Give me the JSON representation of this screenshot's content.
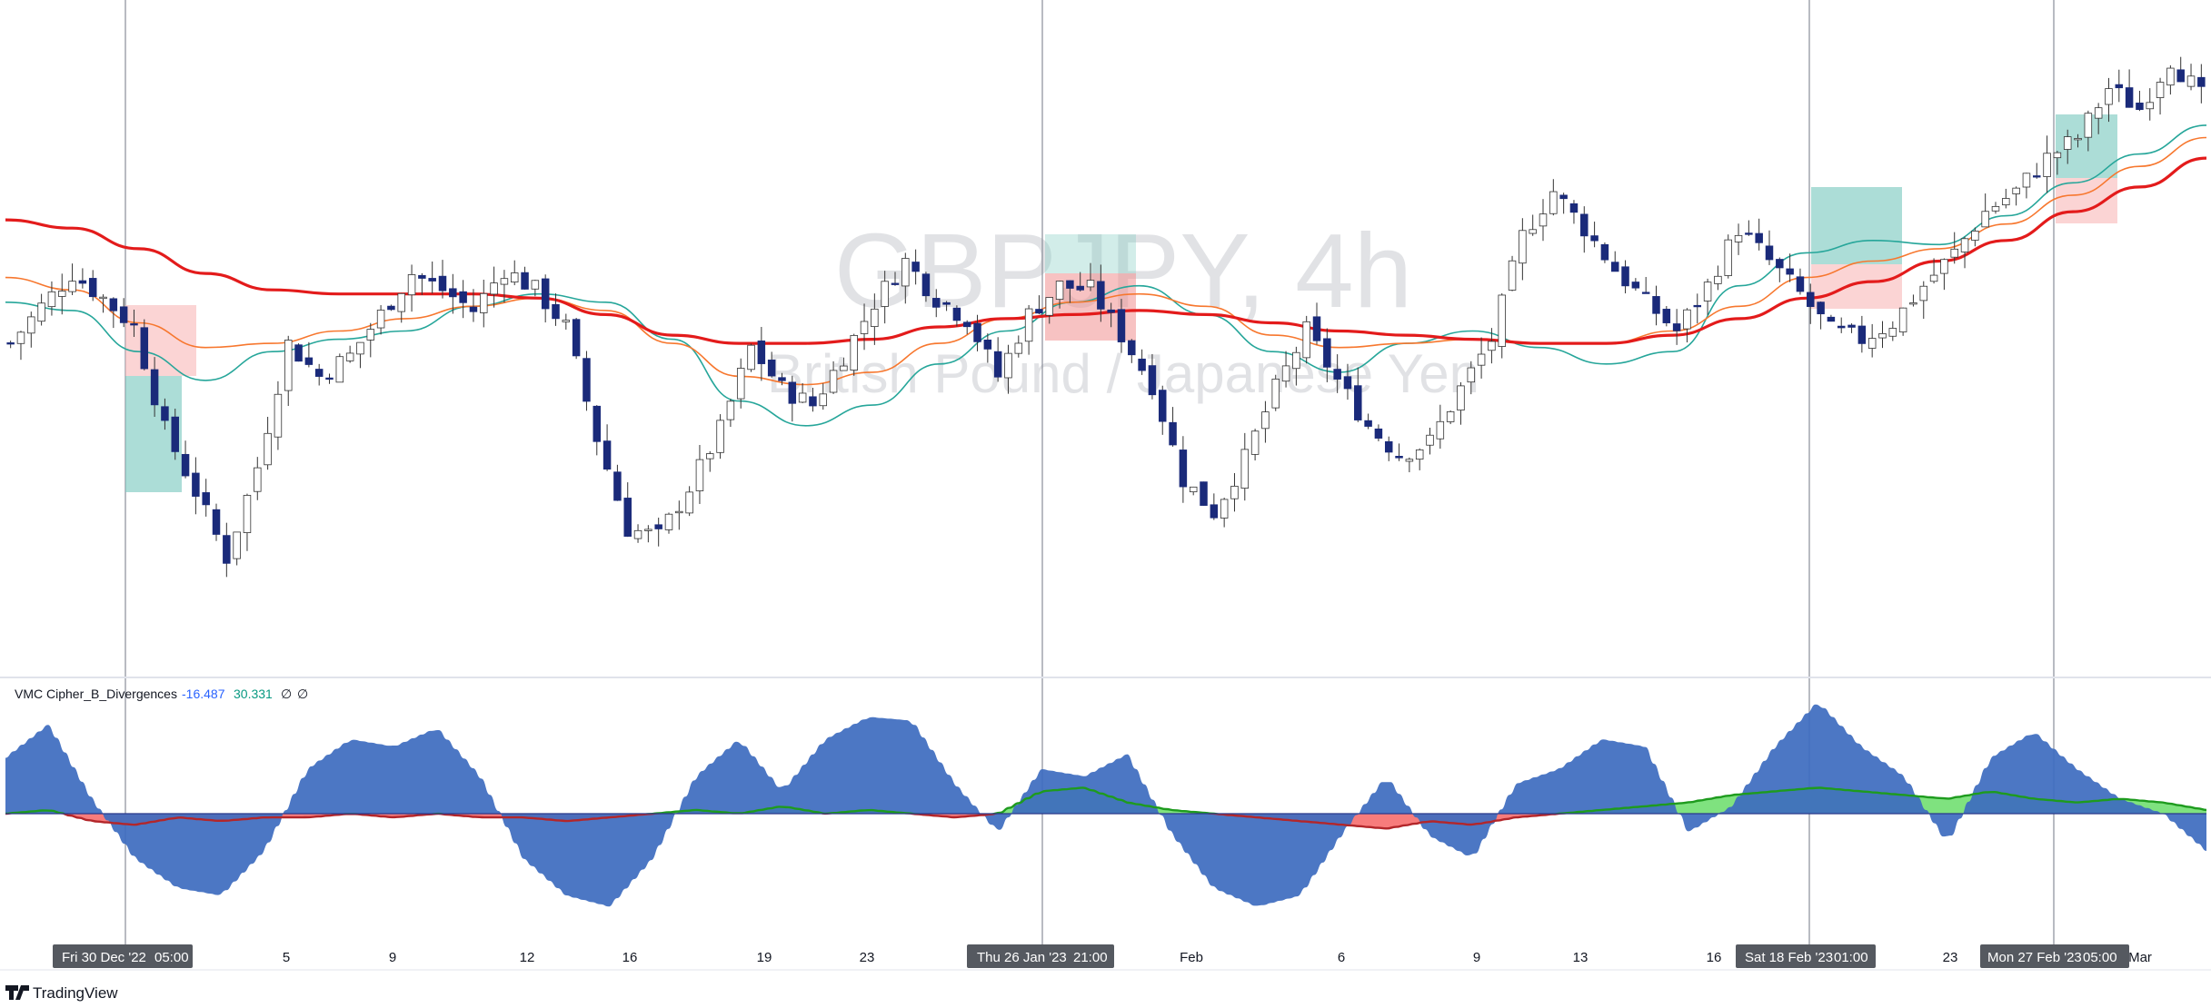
{
  "watermark": {
    "symbol": "GBPJPY, 4h",
    "description": "British Pound / Japanese Yen"
  },
  "indicator": {
    "name": "VMC Cipher_B_Divergences",
    "value1": "-16.487",
    "value2": "30.331",
    "value3": "∅",
    "value4": "∅"
  },
  "time_axis": {
    "labels": [
      {
        "text": "Fri 30 Dec '22",
        "highlight": true
      },
      {
        "text": "05:00",
        "highlight": true
      },
      {
        "text": "5"
      },
      {
        "text": "9"
      },
      {
        "text": "12"
      },
      {
        "text": "16"
      },
      {
        "text": "19"
      },
      {
        "text": "23"
      },
      {
        "text": "Thu 26 Jan '23",
        "highlight": true
      },
      {
        "text": "21:00",
        "highlight": true
      },
      {
        "text": "Feb"
      },
      {
        "text": "6"
      },
      {
        "text": "9"
      },
      {
        "text": "13"
      },
      {
        "text": "16"
      },
      {
        "text": "Sat 18 Feb '23",
        "highlight": true
      },
      {
        "text": "01:00",
        "highlight": true
      },
      {
        "text": "23"
      },
      {
        "text": "Mon 27 Feb '23",
        "highlight": true
      },
      {
        "text": "05:00",
        "highlight": true
      },
      {
        "text": "Mar"
      }
    ]
  },
  "brand": "TradingView",
  "colors": {
    "bull_body": "#ffffff",
    "bear_body": "#1a2a7a",
    "wick": "#333333",
    "ma_fast": "#26a69a",
    "ma_mid": "#f7772e",
    "ma_slow": "#e31b1b",
    "wave_blue": "#3d6bbf",
    "money_red": "#f77c7c",
    "money_green": "#7fe27f",
    "box_red": "#f8b8b8",
    "box_teal": "#7fcbc1"
  },
  "chart_data": [
    {
      "type": "candlestick",
      "symbol": "GBPJPY",
      "timeframe": "4h",
      "close_path": [
        160.6,
        161.5,
        162.3,
        161.7,
        161.0,
        158.5,
        157.0,
        155.4,
        157.6,
        160.6,
        159.8,
        160.3,
        161.3,
        162.3,
        161.9,
        161.4,
        162.4,
        161.9,
        161.0,
        158.3,
        156.1,
        155.9,
        157.1,
        158.5,
        160.5,
        159.5,
        159.1,
        160.3,
        161.6,
        162.6,
        161.7,
        161.2,
        159.8,
        161.3,
        162.0,
        161.9,
        160.8,
        159.6,
        157.3,
        156.5,
        157.8,
        159.5,
        160.9,
        159.7,
        158.6,
        157.9,
        158.2,
        159.5,
        160.7,
        163.2,
        164.3,
        163.4,
        162.4,
        161.6,
        160.9,
        162.0,
        163.4,
        162.6,
        161.8,
        160.9,
        160.7,
        161.1,
        162.0,
        162.8,
        163.8,
        164.3,
        165.1,
        165.6,
        166.8,
        166.3,
        167.5,
        166.6
      ],
      "moving_averages": [
        {
          "name": "",
          "period_style": "fast",
          "path": [
            161.6,
            161.4,
            160.4,
            159.7,
            160.4,
            160.7,
            160.9,
            161.5,
            161.8,
            161.6,
            160.7,
            159.2,
            158.6,
            159.1,
            160.1,
            160.9,
            161.6,
            162.0,
            161.3,
            160.4,
            159.9,
            160.6,
            160.9,
            160.5,
            160.1,
            160.4,
            162.0,
            162.8,
            163.1,
            163.0,
            163.7,
            164.5,
            165.2,
            165.9
          ]
        },
        {
          "name": "",
          "period_style": "mid",
          "path": [
            162.2,
            161.9,
            161.1,
            160.5,
            160.6,
            160.9,
            161.2,
            161.5,
            161.7,
            161.4,
            160.6,
            159.8,
            159.6,
            159.9,
            160.6,
            161.2,
            161.6,
            161.8,
            161.5,
            160.8,
            160.5,
            160.6,
            160.7,
            160.6,
            160.6,
            160.9,
            161.5,
            162.2,
            162.6,
            162.9,
            163.5,
            164.2,
            164.9,
            165.6
          ]
        },
        {
          "name": "",
          "period_style": "slow",
          "path": [
            163.6,
            163.4,
            162.9,
            162.3,
            161.9,
            161.8,
            161.8,
            161.8,
            161.7,
            161.3,
            160.8,
            160.6,
            160.6,
            160.7,
            161.0,
            161.2,
            161.3,
            161.4,
            161.3,
            161.1,
            160.9,
            160.8,
            160.7,
            160.6,
            160.6,
            160.8,
            161.2,
            161.7,
            162.1,
            162.6,
            163.1,
            163.8,
            164.4,
            165.1
          ]
        }
      ]
    },
    {
      "type": "area",
      "name": "VMC Cipher_B_Divergences",
      "wave_path": [
        15,
        24,
        4,
        -12,
        -20,
        -22,
        -10,
        12,
        20,
        18,
        23,
        10,
        -12,
        -22,
        -25,
        -12,
        10,
        20,
        6,
        20,
        26,
        25,
        8,
        -5,
        12,
        10,
        16,
        -5,
        -20,
        -25,
        -22,
        -5,
        10,
        -6,
        -12,
        8,
        12,
        20,
        18,
        -5,
        2,
        18,
        30,
        18,
        10,
        -8,
        15,
        22,
        12,
        4,
        0,
        -10
      ],
      "money_flow_path": [
        0,
        1,
        -2,
        -3,
        -1,
        -2,
        -1,
        -1,
        0,
        -1,
        0,
        -1,
        -1,
        -2,
        -1,
        0,
        1,
        0,
        2,
        0,
        1,
        0,
        -1,
        0,
        6,
        7,
        3,
        1,
        0,
        -1,
        -2,
        -3,
        -4,
        -2,
        -3,
        -1,
        0,
        1,
        2,
        3,
        5,
        6,
        7,
        6,
        5,
        4,
        6,
        4,
        3,
        4,
        3,
        1
      ]
    }
  ]
}
